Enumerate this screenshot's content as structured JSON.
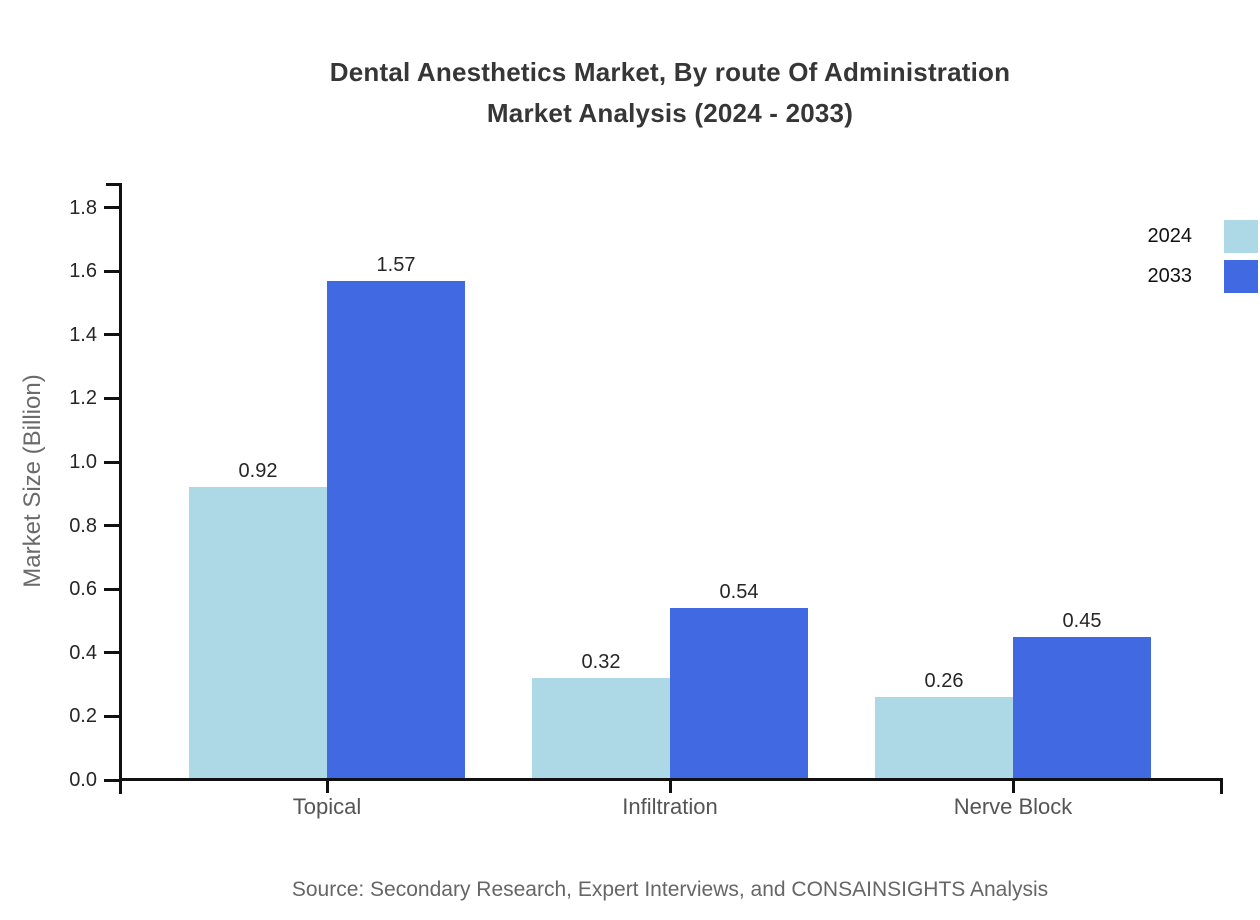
{
  "title_line1": "Dental Anesthetics Market, By route Of Administration",
  "title_line2": "Market Analysis (2024 - 2033)",
  "source": "Source: Secondary Research, Expert Interviews, and CONSAINSIGHTS Analysis",
  "colors": {
    "series_2024": "#ADD8E6",
    "series_2033": "#4169E1",
    "axis": "#111111",
    "title_text": "#363636",
    "muted_text": "#666666"
  },
  "chart_data": {
    "type": "bar",
    "title": "Dental Anesthetics Market, By route Of Administration Market Analysis (2024 - 2033)",
    "categories": [
      "Topical",
      "Infiltration",
      "Nerve Block"
    ],
    "series": [
      {
        "name": "2024",
        "color": "#ADD8E6",
        "values": [
          0.92,
          0.32,
          0.26
        ]
      },
      {
        "name": "2033",
        "color": "#4169E1",
        "values": [
          1.57,
          0.54,
          0.45
        ]
      }
    ],
    "xlabel": "",
    "ylabel": "Market Size (Billion)",
    "ylim": [
      0,
      1.8
    ],
    "ytick_step": 0.2,
    "grid": false,
    "legend_position": "top-right",
    "value_labels": true,
    "value_label_format": "0.00",
    "source_note": "Source: Secondary Research, Expert Interviews, and CONSAINSIGHTS Analysis"
  }
}
